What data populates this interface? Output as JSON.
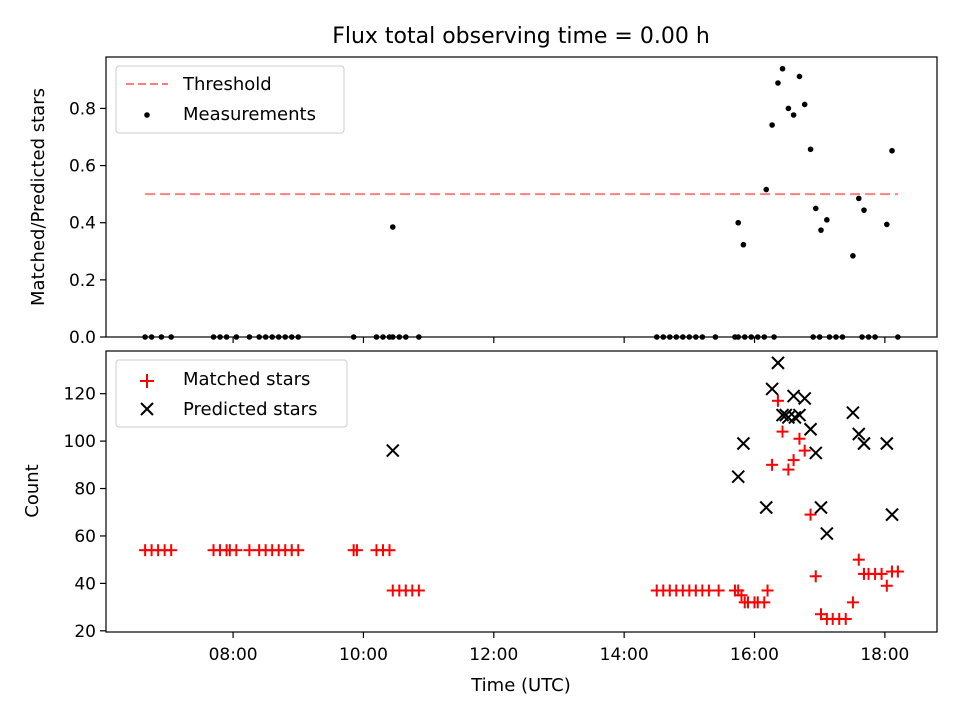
{
  "figure": {
    "title": "Flux total observing time = 0.00 h"
  },
  "chart_data": [
    {
      "type": "scatter",
      "panel": "top",
      "ylabel": "Matched/Predicted stars",
      "xlabel": "",
      "x_unit": "hours UTC",
      "xlim": [
        6.05,
        18.8
      ],
      "ylim": [
        0,
        0.98
      ],
      "yticks": [
        0.0,
        0.2,
        0.4,
        0.6,
        0.8
      ],
      "ytick_labels": [
        "0.0",
        "0.2",
        "0.4",
        "0.6",
        "0.8"
      ],
      "grid": false,
      "legend_position": "upper-left",
      "threshold": {
        "name": "Threshold",
        "y": 0.5,
        "x_range": [
          6.65,
          18.2
        ],
        "color": "#ff7f7f",
        "style": "dashed"
      },
      "series": [
        {
          "name": "Measurements",
          "marker": "dot",
          "color": "#000000",
          "x": [
            6.65,
            6.75,
            6.9,
            7.05,
            7.7,
            7.8,
            7.9,
            8.05,
            8.25,
            8.4,
            8.5,
            8.6,
            8.7,
            8.8,
            8.9,
            9.0,
            9.85,
            10.2,
            10.3,
            10.4,
            10.45,
            10.55,
            10.65,
            10.85,
            14.5,
            14.6,
            14.7,
            14.8,
            14.9,
            15.0,
            15.1,
            15.2,
            15.4,
            15.7,
            15.75,
            15.85,
            15.95,
            16.05,
            16.15,
            16.3,
            16.9,
            17.0,
            17.15,
            17.25,
            17.35,
            17.65,
            17.75,
            17.85,
            18.2,
            10.45,
            15.75,
            15.83,
            16.18,
            16.27,
            16.36,
            16.43,
            16.52,
            16.6,
            16.69,
            16.77,
            16.86,
            16.94,
            17.02,
            17.11,
            17.51,
            17.6,
            17.68,
            18.03,
            18.11
          ],
          "y": [
            0,
            0,
            0,
            0,
            0,
            0,
            0,
            0,
            0,
            0,
            0,
            0,
            0,
            0,
            0,
            0,
            0,
            0,
            0,
            0,
            0,
            0,
            0,
            0,
            0,
            0,
            0,
            0,
            0,
            0,
            0,
            0,
            0,
            0,
            0,
            0,
            0,
            0,
            0,
            0,
            0,
            0,
            0,
            0,
            0,
            0,
            0,
            0,
            0,
            0.385,
            0.4,
            0.323,
            0.516,
            0.742,
            0.889,
            0.939,
            0.8,
            0.777,
            0.912,
            0.814,
            0.657,
            0.45,
            0.374,
            0.41,
            0.284,
            0.485,
            0.444,
            0.394,
            0.652
          ]
        }
      ]
    },
    {
      "type": "scatter",
      "panel": "bottom",
      "ylabel": "Count",
      "xlabel": "Time (UTC)",
      "x_unit": "hours UTC",
      "xlim": [
        6.05,
        18.8
      ],
      "ylim": [
        19.5,
        138
      ],
      "xticks": [
        8,
        10,
        12,
        14,
        16,
        18
      ],
      "xtick_labels": [
        "08:00",
        "10:00",
        "12:00",
        "14:00",
        "16:00",
        "18:00"
      ],
      "yticks": [
        20,
        40,
        60,
        80,
        100,
        120
      ],
      "ytick_labels": [
        "20",
        "40",
        "60",
        "80",
        "100",
        "120"
      ],
      "grid": false,
      "legend_position": "upper-left",
      "series": [
        {
          "name": "Matched stars",
          "marker": "plus",
          "color": "#ff0000",
          "x": [
            6.65,
            6.75,
            6.85,
            6.95,
            7.05,
            7.7,
            7.8,
            7.9,
            7.95,
            8.05,
            8.25,
            8.4,
            8.5,
            8.6,
            8.7,
            8.8,
            8.9,
            9.0,
            9.85,
            9.9,
            10.2,
            10.3,
            10.4,
            10.45,
            10.55,
            10.65,
            10.75,
            10.85,
            14.5,
            14.6,
            14.7,
            14.8,
            14.9,
            15.0,
            15.1,
            15.2,
            15.3,
            15.45,
            15.7,
            15.75,
            15.8,
            15.85,
            15.9,
            16.0,
            16.05,
            16.15,
            16.2,
            16.27,
            16.36,
            16.43,
            16.52,
            16.6,
            16.69,
            16.77,
            16.86,
            16.94,
            17.02,
            17.11,
            17.2,
            17.3,
            17.4,
            17.51,
            17.6,
            17.68,
            17.75,
            17.85,
            17.95,
            18.03,
            18.11,
            18.2
          ],
          "y": [
            54,
            54,
            54,
            54,
            54,
            54,
            54,
            54,
            54,
            54,
            54,
            54,
            54,
            54,
            54,
            54,
            54,
            54,
            54,
            54,
            54,
            54,
            54,
            37,
            37,
            37,
            37,
            37,
            37,
            37,
            37,
            37,
            37,
            37,
            37,
            37,
            37,
            37,
            37,
            37,
            35,
            32,
            32,
            32,
            32,
            32,
            37,
            90,
            117,
            104,
            88,
            92,
            101,
            96,
            69,
            43,
            27,
            25,
            25,
            25,
            25,
            32,
            50,
            44,
            44,
            44,
            44,
            39,
            45,
            45
          ]
        },
        {
          "name": "Predicted stars",
          "marker": "x",
          "color": "#000000",
          "x": [
            10.45,
            15.75,
            15.83,
            16.18,
            16.27,
            16.36,
            16.43,
            16.52,
            16.6,
            16.69,
            16.77,
            16.86,
            16.94,
            17.02,
            17.11,
            17.51,
            17.6,
            17.68,
            18.03,
            18.11,
            16.48,
            16.62
          ],
          "y": [
            96,
            85,
            99,
            72,
            122,
            133,
            111,
            110,
            119,
            111,
            118,
            105,
            95,
            72,
            61,
            112,
            103,
            99,
            99,
            69,
            111,
            110
          ]
        }
      ]
    }
  ]
}
